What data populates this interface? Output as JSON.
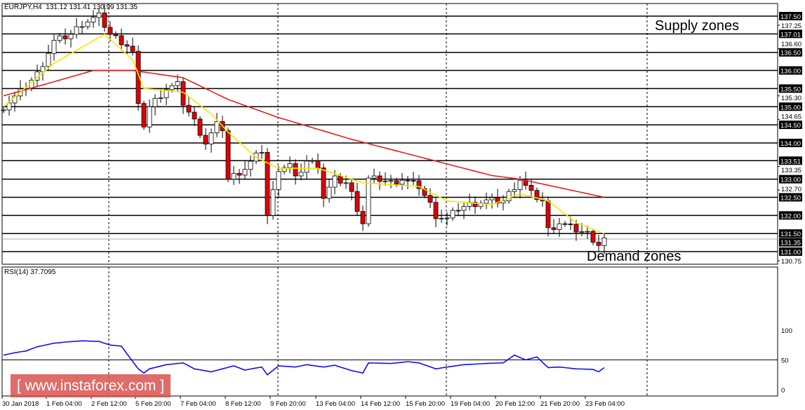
{
  "header": {
    "symbol": "EURJPY,H4",
    "ohlc": "131.12 131.41 130.99 131.35"
  },
  "rsi_header": "RSI(14) 37.7095",
  "annotations": {
    "supply": "Supply zones",
    "demand": "Demand zones"
  },
  "watermark": "[ www.instaforex.com ]",
  "colors": {
    "bull": "#ffffff",
    "bear": "#e00000",
    "ma_fast": "#f5e600",
    "ma_slow": "#e02020",
    "rsi": "#1010ee"
  },
  "chart_data": {
    "type": "candlestick",
    "price_range": [
      130.65,
      137.85
    ],
    "zone_levels": [
      "137.50",
      "137.01",
      "136.50",
      "136.00",
      "135.50",
      "135.00",
      "134.50",
      "134.00",
      "133.51",
      "133.00",
      "132.50",
      "132.00",
      "131.50",
      "131.00"
    ],
    "axis_ticks": [
      "137.25",
      "136.60",
      "135.30",
      "134.65",
      "133.35",
      "132.70",
      "130.75"
    ],
    "current_price": "131.35",
    "x_labels": [
      "30 Jan 2018",
      "1 Feb 04:00",
      "2 Feb 12:00",
      "5 Feb 20:00",
      "7 Feb 04:00",
      "8 Feb 12:00",
      "9 Feb 20:00",
      "13 Feb 04:00",
      "14 Feb 12:00",
      "15 Feb 20:00",
      "19 Feb 04:00",
      "20 Feb 12:00",
      "21 Feb 20:00",
      "23 Feb 04:00"
    ],
    "bars": 108,
    "close_waypoints": [
      [
        0,
        135.0
      ],
      [
        3,
        135.4
      ],
      [
        6,
        135.9
      ],
      [
        9,
        136.8
      ],
      [
        12,
        137.0
      ],
      [
        14,
        137.3
      ],
      [
        17,
        137.5
      ],
      [
        19,
        137.0
      ],
      [
        22,
        136.7
      ],
      [
        23,
        136.5
      ],
      [
        24,
        135.0
      ],
      [
        25,
        134.5
      ],
      [
        26,
        135.0
      ],
      [
        29,
        135.5
      ],
      [
        31,
        135.6
      ],
      [
        32,
        135.1
      ],
      [
        34,
        134.6
      ],
      [
        36,
        134.0
      ],
      [
        38,
        134.5
      ],
      [
        39,
        134.4
      ],
      [
        40,
        133.0
      ],
      [
        43,
        133.3
      ],
      [
        46,
        133.8
      ],
      [
        47,
        132.0
      ],
      [
        49,
        133.3
      ],
      [
        51,
        133.4
      ],
      [
        52,
        133.0
      ],
      [
        54,
        133.5
      ],
      [
        56,
        133.4
      ],
      [
        57,
        132.5
      ],
      [
        59,
        133.0
      ],
      [
        61,
        132.9
      ],
      [
        62,
        132.6
      ],
      [
        64,
        131.8
      ],
      [
        65,
        133.0
      ],
      [
        67,
        133.0
      ],
      [
        69,
        132.9
      ],
      [
        71,
        133.0
      ],
      [
        74,
        132.8
      ],
      [
        76,
        132.3
      ],
      [
        77,
        132.0
      ],
      [
        79,
        131.9
      ],
      [
        81,
        132.2
      ],
      [
        83,
        132.3
      ],
      [
        86,
        132.4
      ],
      [
        89,
        132.4
      ],
      [
        90,
        132.6
      ],
      [
        92,
        133.0
      ],
      [
        94,
        132.6
      ],
      [
        96,
        132.4
      ],
      [
        97,
        131.6
      ],
      [
        99,
        131.8
      ],
      [
        102,
        131.6
      ],
      [
        104,
        131.5
      ],
      [
        106,
        131.2
      ],
      [
        107,
        131.35
      ]
    ],
    "ma_fast_waypoints": [
      [
        0,
        135.0
      ],
      [
        9,
        136.2
      ],
      [
        18,
        137.0
      ],
      [
        23,
        136.3
      ],
      [
        25,
        135.5
      ],
      [
        32,
        135.4
      ],
      [
        37,
        134.8
      ],
      [
        40,
        134.3
      ],
      [
        45,
        133.6
      ],
      [
        49,
        133.3
      ],
      [
        56,
        133.3
      ],
      [
        64,
        132.9
      ],
      [
        74,
        132.8
      ],
      [
        79,
        132.4
      ],
      [
        87,
        132.3
      ],
      [
        92,
        132.6
      ],
      [
        97,
        132.4
      ],
      [
        102,
        131.8
      ],
      [
        107,
        131.5
      ]
    ],
    "ma_slow_waypoints": [
      [
        0,
        135.3
      ],
      [
        7,
        135.6
      ],
      [
        16,
        136.0
      ],
      [
        23,
        136.0
      ],
      [
        32,
        135.8
      ],
      [
        40,
        135.2
      ],
      [
        49,
        134.7
      ],
      [
        62,
        134.1
      ],
      [
        77,
        133.5
      ],
      [
        87,
        133.1
      ],
      [
        92,
        133.0
      ],
      [
        107,
        132.5
      ]
    ],
    "rsi": {
      "range": [
        0,
        100
      ],
      "ticks": [
        "100",
        "50",
        "0"
      ],
      "level": 50,
      "waypoints": [
        [
          0,
          58
        ],
        [
          2,
          62
        ],
        [
          4,
          65
        ],
        [
          6,
          72
        ],
        [
          9,
          78
        ],
        [
          11,
          80
        ],
        [
          14,
          82
        ],
        [
          17,
          81
        ],
        [
          19,
          75
        ],
        [
          21,
          73
        ],
        [
          22,
          60
        ],
        [
          24,
          35
        ],
        [
          25,
          28
        ],
        [
          26,
          35
        ],
        [
          29,
          42
        ],
        [
          32,
          45
        ],
        [
          34,
          35
        ],
        [
          37,
          30
        ],
        [
          41,
          40
        ],
        [
          43,
          33
        ],
        [
          46,
          38
        ],
        [
          47,
          25
        ],
        [
          49,
          40
        ],
        [
          52,
          38
        ],
        [
          54,
          42
        ],
        [
          57,
          38
        ],
        [
          59,
          41
        ],
        [
          62,
          32
        ],
        [
          64,
          28
        ],
        [
          65,
          45
        ],
        [
          69,
          44
        ],
        [
          72,
          47
        ],
        [
          74,
          45
        ],
        [
          77,
          35
        ],
        [
          79,
          38
        ],
        [
          82,
          42
        ],
        [
          86,
          44
        ],
        [
          89,
          45
        ],
        [
          91,
          58
        ],
        [
          93,
          50
        ],
        [
          95,
          55
        ],
        [
          97,
          37
        ],
        [
          99,
          38
        ],
        [
          102,
          35
        ],
        [
          105,
          34
        ],
        [
          106,
          30
        ],
        [
          107,
          37
        ]
      ]
    }
  }
}
